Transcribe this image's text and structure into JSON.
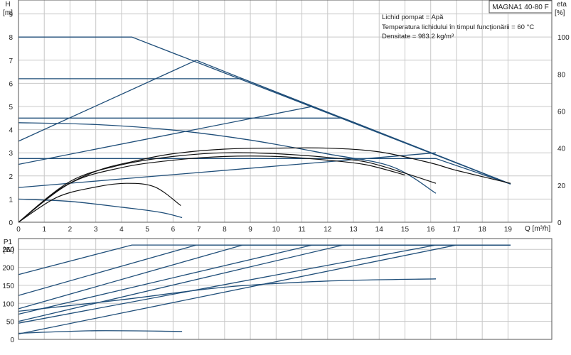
{
  "title": "MAGNA1 40-80 F",
  "info_lines": [
    "Lichid pompat = Apă",
    "Temperatura lichidului în timpul funcţionării = 60 °C",
    "Densitate = 983.2 kg/m³"
  ],
  "colors": {
    "curve": "#1f4e79",
    "efficiency": "#111111",
    "grid": "#c8c8c8",
    "frame": "#555555"
  },
  "chart_data": [
    {
      "type": "line",
      "xlabel": "Q [m³/h]",
      "ylabel": [
        "H",
        "[m]"
      ],
      "y2label": [
        "eta",
        "[%]"
      ],
      "xlim": [
        0,
        20.7
      ],
      "ylim": [
        0,
        9.6
      ],
      "y2lim": [
        0,
        120
      ],
      "grid": true,
      "x_ticks": [
        0,
        1,
        2,
        3,
        4,
        5,
        6,
        7,
        8,
        9,
        10,
        11,
        12,
        13,
        14,
        15,
        16,
        17,
        18,
        19
      ],
      "y_ticks": [
        0,
        1,
        2,
        3,
        4,
        5,
        6,
        7,
        8,
        9
      ],
      "y2_ticks": [
        0,
        20,
        40,
        60,
        80,
        100
      ],
      "series": [
        {
          "x": [
            0,
            4.4,
            19.1
          ],
          "y": [
            8.0,
            8.0,
            1.65
          ]
        },
        {
          "x": [
            0,
            8.7,
            19.1
          ],
          "y": [
            6.2,
            6.2,
            1.65
          ]
        },
        {
          "x": [
            0,
            12.6,
            19.1
          ],
          "y": [
            4.5,
            4.5,
            1.65
          ]
        },
        {
          "x": [
            0,
            16.2,
            19.1
          ],
          "y": [
            2.75,
            2.75,
            1.65
          ]
        },
        {
          "x": [
            0,
            3.0,
            6.0,
            9.0,
            12.0,
            14.5,
            16.2
          ],
          "y": [
            4.3,
            4.22,
            3.98,
            3.55,
            2.95,
            2.4,
            1.25
          ]
        },
        {
          "x": [
            0,
            2.0,
            4.0,
            5.5,
            6.35
          ],
          "y": [
            1.0,
            0.9,
            0.65,
            0.43,
            0.2
          ]
        },
        {
          "x": [
            0,
            6.9,
            11.4,
            19.1
          ],
          "y": [
            3.5,
            7.0,
            5.0,
            1.65
          ]
        },
        {
          "x": [
            0,
            11.4
          ],
          "y": [
            2.5,
            5.0
          ]
        },
        {
          "x": [
            0,
            16.2
          ],
          "y": [
            1.5,
            3.0
          ]
        }
      ],
      "efficiency": [
        {
          "x": [
            0,
            1.5,
            3.0,
            4.5,
            6.0,
            8.0,
            10.0,
            12.0,
            14.0,
            16.0,
            17.0,
            19.1
          ],
          "y2": [
            0,
            17,
            27.5,
            33,
            37,
            39.5,
            40,
            40,
            38,
            32,
            28,
            21
          ]
        },
        {
          "x": [
            0,
            2.0,
            4.0,
            6.0,
            8.0,
            10.0,
            12.0,
            13.5,
            15.0,
            16.2
          ],
          "y2": [
            0,
            22,
            31,
            35.5,
            37.5,
            37,
            35,
            32.5,
            26.5,
            21
          ]
        },
        {
          "x": [
            0,
            2.0,
            4.0,
            6.0,
            8.0,
            10.0,
            12.0,
            13.5,
            15.0
          ],
          "y2": [
            0,
            21,
            29.5,
            33.5,
            35.5,
            35.5,
            33.5,
            31,
            25.5
          ]
        },
        {
          "x": [
            0,
            1.5,
            3.0,
            4.2,
            5.3,
            6.3
          ],
          "y2": [
            0,
            13.5,
            19,
            21,
            19,
            9
          ]
        }
      ]
    },
    {
      "type": "line",
      "ylabel": [
        "P1",
        "[W]"
      ],
      "xlim": [
        0,
        20.7
      ],
      "ylim": [
        0,
        280
      ],
      "grid": true,
      "y_ticks": [
        0,
        50,
        100,
        150,
        200,
        250
      ],
      "series": [
        {
          "x": [
            0,
            4.4,
            19.1
          ],
          "y": [
            180,
            262,
            262
          ]
        },
        {
          "x": [
            0,
            6.9,
            19.1
          ],
          "y": [
            122,
            262,
            262
          ]
        },
        {
          "x": [
            0,
            8.7,
            19.1
          ],
          "y": [
            85,
            262,
            262
          ]
        },
        {
          "x": [
            0,
            11.4,
            19.1
          ],
          "y": [
            70,
            262,
            262
          ]
        },
        {
          "x": [
            0,
            12.6,
            19.1
          ],
          "y": [
            50,
            262,
            262
          ]
        },
        {
          "x": [
            0,
            16.2,
            19.1
          ],
          "y": [
            45,
            262,
            262
          ]
        },
        {
          "x": [
            0,
            17.0,
            19.1
          ],
          "y": [
            15,
            262,
            262
          ]
        },
        {
          "x": [
            0,
            4.0,
            8.0,
            12.0,
            16.2
          ],
          "y": [
            78,
            110,
            145,
            162,
            168
          ]
        },
        {
          "x": [
            0,
            3.0,
            6.35
          ],
          "y": [
            17,
            24,
            22
          ]
        }
      ]
    }
  ]
}
